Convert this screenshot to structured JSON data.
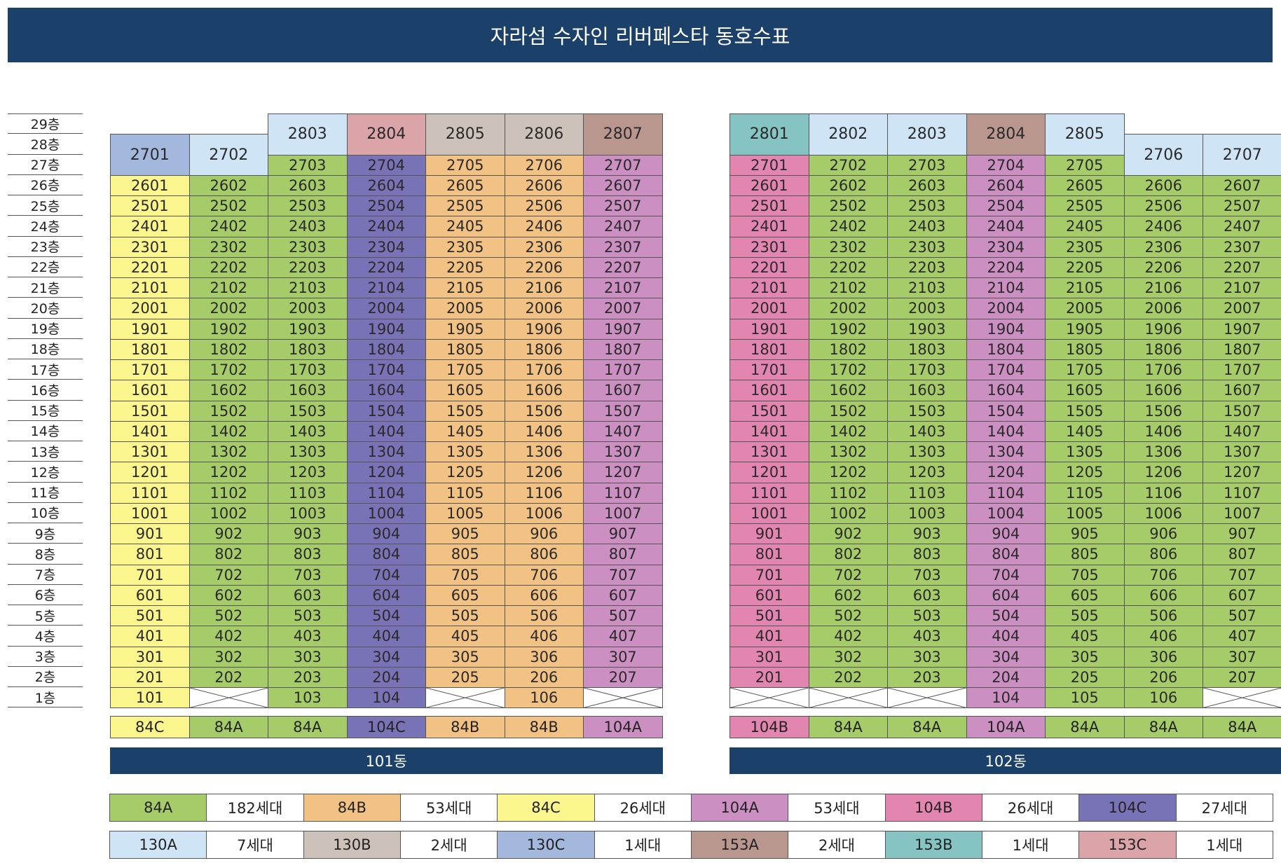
{
  "title": "자라섬 수자인 리버페스타 동호수표",
  "floors": [
    "29층",
    "28층",
    "27층",
    "26층",
    "25층",
    "24층",
    "23층",
    "22층",
    "21층",
    "20층",
    "19층",
    "18층",
    "17층",
    "16층",
    "15층",
    "14층",
    "13층",
    "12층",
    "11층",
    "10층",
    "9층",
    "8층",
    "7층",
    "6층",
    "5층",
    "4층",
    "3층",
    "2층",
    "1층"
  ],
  "colors": {
    "84A": "#a6cc6a",
    "84B": "#f2c285",
    "84C": "#fbf58e",
    "104A": "#cc8fc2",
    "104B": "#e286b0",
    "104C": "#7873b6",
    "130A": "#cfe5f6",
    "130B": "#cdc2b9",
    "130C": "#a4b8de",
    "153A": "#b9978f",
    "153B": "#86c4c3",
    "153C": "#dba4a8"
  },
  "buildings": [
    {
      "name": "101동",
      "types": [
        "84C",
        "84A",
        "84A",
        "104C",
        "84B",
        "84B",
        "104A"
      ],
      "top": [
        {
          "unit": "2701",
          "type": "130C",
          "span": 2
        },
        {
          "unit": "2702",
          "type": "130A",
          "span": 2
        },
        {
          "unit": "2803",
          "type": "130A",
          "span": 2
        },
        {
          "unit": "2804",
          "type": "153C",
          "span": 2
        },
        {
          "unit": "2805",
          "type": "130B",
          "span": 2
        },
        {
          "unit": "2806",
          "type": "130B",
          "span": 2
        },
        {
          "unit": "2807",
          "type": "153A",
          "span": 2
        }
      ],
      "row27": [
        "",
        "",
        "2703",
        "2704",
        "2705",
        "2706",
        "2707"
      ],
      "first_floor": [
        "101",
        "",
        "103",
        "104",
        "",
        "106",
        ""
      ]
    },
    {
      "name": "102동",
      "types": [
        "104B",
        "84A",
        "84A",
        "104A",
        "84A",
        "84A",
        "84A"
      ],
      "top": [
        {
          "unit": "2801",
          "type": "153B",
          "span": 2
        },
        {
          "unit": "2802",
          "type": "130A",
          "span": 2
        },
        {
          "unit": "2803",
          "type": "130A",
          "span": 2
        },
        {
          "unit": "2804",
          "type": "153A",
          "span": 2
        },
        {
          "unit": "2805",
          "type": "130A",
          "span": 2
        },
        {
          "unit": "2706",
          "type": "130A",
          "span": 2
        },
        {
          "unit": "2707",
          "type": "130A",
          "span": 2
        }
      ],
      "row27": [
        "2701",
        "2702",
        "2703",
        "2704",
        "2705",
        "",
        ""
      ],
      "first_floor": [
        "",
        "",
        "",
        "104",
        "105",
        "106",
        ""
      ]
    }
  ],
  "legend": [
    [
      {
        "type": "84A",
        "count": "182세대"
      },
      {
        "type": "84B",
        "count": "53세대"
      },
      {
        "type": "84C",
        "count": "26세대"
      },
      {
        "type": "104A",
        "count": "53세대"
      },
      {
        "type": "104B",
        "count": "26세대"
      },
      {
        "type": "104C",
        "count": "27세대"
      }
    ],
    [
      {
        "type": "130A",
        "count": "7세대"
      },
      {
        "type": "130B",
        "count": "2세대"
      },
      {
        "type": "130C",
        "count": "1세대"
      },
      {
        "type": "153A",
        "count": "2세대"
      },
      {
        "type": "153B",
        "count": "1세대"
      },
      {
        "type": "153C",
        "count": "1세대"
      }
    ]
  ]
}
